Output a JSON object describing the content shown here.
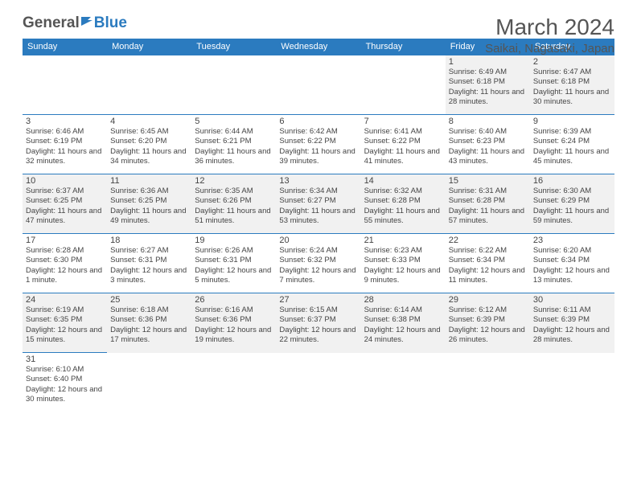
{
  "brand": {
    "part1": "General",
    "part2": "Blue",
    "flag_color": "#2b7bbf"
  },
  "title": "March 2024",
  "location": "Saikai, Nagasaki, Japan",
  "colors": {
    "header_bg": "#2b7bbf",
    "header_fg": "#ffffff",
    "row_alt": "#f1f1f1",
    "border": "#2b7bbf"
  },
  "weekdays": [
    "Sunday",
    "Monday",
    "Tuesday",
    "Wednesday",
    "Thursday",
    "Friday",
    "Saturday"
  ],
  "weeks": [
    [
      null,
      null,
      null,
      null,
      null,
      {
        "d": "1",
        "sr": "Sunrise: 6:49 AM",
        "ss": "Sunset: 6:18 PM",
        "dl": "Daylight: 11 hours and 28 minutes."
      },
      {
        "d": "2",
        "sr": "Sunrise: 6:47 AM",
        "ss": "Sunset: 6:18 PM",
        "dl": "Daylight: 11 hours and 30 minutes."
      }
    ],
    [
      {
        "d": "3",
        "sr": "Sunrise: 6:46 AM",
        "ss": "Sunset: 6:19 PM",
        "dl": "Daylight: 11 hours and 32 minutes."
      },
      {
        "d": "4",
        "sr": "Sunrise: 6:45 AM",
        "ss": "Sunset: 6:20 PM",
        "dl": "Daylight: 11 hours and 34 minutes."
      },
      {
        "d": "5",
        "sr": "Sunrise: 6:44 AM",
        "ss": "Sunset: 6:21 PM",
        "dl": "Daylight: 11 hours and 36 minutes."
      },
      {
        "d": "6",
        "sr": "Sunrise: 6:42 AM",
        "ss": "Sunset: 6:22 PM",
        "dl": "Daylight: 11 hours and 39 minutes."
      },
      {
        "d": "7",
        "sr": "Sunrise: 6:41 AM",
        "ss": "Sunset: 6:22 PM",
        "dl": "Daylight: 11 hours and 41 minutes."
      },
      {
        "d": "8",
        "sr": "Sunrise: 6:40 AM",
        "ss": "Sunset: 6:23 PM",
        "dl": "Daylight: 11 hours and 43 minutes."
      },
      {
        "d": "9",
        "sr": "Sunrise: 6:39 AM",
        "ss": "Sunset: 6:24 PM",
        "dl": "Daylight: 11 hours and 45 minutes."
      }
    ],
    [
      {
        "d": "10",
        "sr": "Sunrise: 6:37 AM",
        "ss": "Sunset: 6:25 PM",
        "dl": "Daylight: 11 hours and 47 minutes."
      },
      {
        "d": "11",
        "sr": "Sunrise: 6:36 AM",
        "ss": "Sunset: 6:25 PM",
        "dl": "Daylight: 11 hours and 49 minutes."
      },
      {
        "d": "12",
        "sr": "Sunrise: 6:35 AM",
        "ss": "Sunset: 6:26 PM",
        "dl": "Daylight: 11 hours and 51 minutes."
      },
      {
        "d": "13",
        "sr": "Sunrise: 6:34 AM",
        "ss": "Sunset: 6:27 PM",
        "dl": "Daylight: 11 hours and 53 minutes."
      },
      {
        "d": "14",
        "sr": "Sunrise: 6:32 AM",
        "ss": "Sunset: 6:28 PM",
        "dl": "Daylight: 11 hours and 55 minutes."
      },
      {
        "d": "15",
        "sr": "Sunrise: 6:31 AM",
        "ss": "Sunset: 6:28 PM",
        "dl": "Daylight: 11 hours and 57 minutes."
      },
      {
        "d": "16",
        "sr": "Sunrise: 6:30 AM",
        "ss": "Sunset: 6:29 PM",
        "dl": "Daylight: 11 hours and 59 minutes."
      }
    ],
    [
      {
        "d": "17",
        "sr": "Sunrise: 6:28 AM",
        "ss": "Sunset: 6:30 PM",
        "dl": "Daylight: 12 hours and 1 minute."
      },
      {
        "d": "18",
        "sr": "Sunrise: 6:27 AM",
        "ss": "Sunset: 6:31 PM",
        "dl": "Daylight: 12 hours and 3 minutes."
      },
      {
        "d": "19",
        "sr": "Sunrise: 6:26 AM",
        "ss": "Sunset: 6:31 PM",
        "dl": "Daylight: 12 hours and 5 minutes."
      },
      {
        "d": "20",
        "sr": "Sunrise: 6:24 AM",
        "ss": "Sunset: 6:32 PM",
        "dl": "Daylight: 12 hours and 7 minutes."
      },
      {
        "d": "21",
        "sr": "Sunrise: 6:23 AM",
        "ss": "Sunset: 6:33 PM",
        "dl": "Daylight: 12 hours and 9 minutes."
      },
      {
        "d": "22",
        "sr": "Sunrise: 6:22 AM",
        "ss": "Sunset: 6:34 PM",
        "dl": "Daylight: 12 hours and 11 minutes."
      },
      {
        "d": "23",
        "sr": "Sunrise: 6:20 AM",
        "ss": "Sunset: 6:34 PM",
        "dl": "Daylight: 12 hours and 13 minutes."
      }
    ],
    [
      {
        "d": "24",
        "sr": "Sunrise: 6:19 AM",
        "ss": "Sunset: 6:35 PM",
        "dl": "Daylight: 12 hours and 15 minutes."
      },
      {
        "d": "25",
        "sr": "Sunrise: 6:18 AM",
        "ss": "Sunset: 6:36 PM",
        "dl": "Daylight: 12 hours and 17 minutes."
      },
      {
        "d": "26",
        "sr": "Sunrise: 6:16 AM",
        "ss": "Sunset: 6:36 PM",
        "dl": "Daylight: 12 hours and 19 minutes."
      },
      {
        "d": "27",
        "sr": "Sunrise: 6:15 AM",
        "ss": "Sunset: 6:37 PM",
        "dl": "Daylight: 12 hours and 22 minutes."
      },
      {
        "d": "28",
        "sr": "Sunrise: 6:14 AM",
        "ss": "Sunset: 6:38 PM",
        "dl": "Daylight: 12 hours and 24 minutes."
      },
      {
        "d": "29",
        "sr": "Sunrise: 6:12 AM",
        "ss": "Sunset: 6:39 PM",
        "dl": "Daylight: 12 hours and 26 minutes."
      },
      {
        "d": "30",
        "sr": "Sunrise: 6:11 AM",
        "ss": "Sunset: 6:39 PM",
        "dl": "Daylight: 12 hours and 28 minutes."
      }
    ],
    [
      {
        "d": "31",
        "sr": "Sunrise: 6:10 AM",
        "ss": "Sunset: 6:40 PM",
        "dl": "Daylight: 12 hours and 30 minutes."
      },
      null,
      null,
      null,
      null,
      null,
      null
    ]
  ]
}
